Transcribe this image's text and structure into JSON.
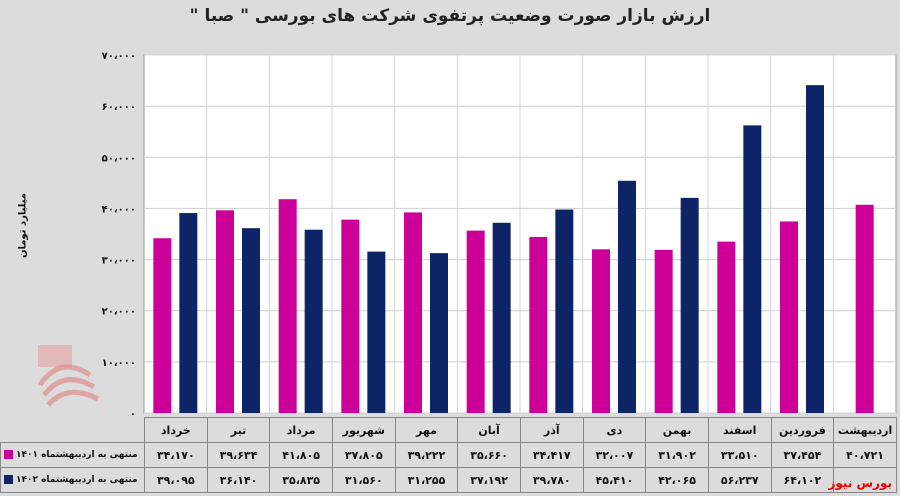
{
  "chart_data": {
    "type": "bar",
    "title": "ارزش بازار صورت وضعیت پرتفوی شرکت های بورسی \" صبا \"",
    "ylabel": "میلیارد تومان",
    "ylim": [
      0,
      70000
    ],
    "yticks": [
      "۰",
      "۱۰،۰۰۰",
      "۲۰،۰۰۰",
      "۳۰،۰۰۰",
      "۴۰،۰۰۰",
      "۵۰،۰۰۰",
      "۶۰،۰۰۰",
      "۷۰،۰۰۰"
    ],
    "grid": true,
    "legend_placement": "table-left",
    "categories": [
      "خرداد",
      "تیر",
      "مرداد",
      "شهریور",
      "مهر",
      "آبان",
      "آذر",
      "دی",
      "بهمن",
      "اسفند",
      "فروردین",
      "اردیبهشت"
    ],
    "series": [
      {
        "name": "منتهی به اردیبهشتماه ۱۴۰۱",
        "color": "#cc0099",
        "values": [
          34170,
          39634,
          41805,
          37805,
          39222,
          35660,
          34417,
          32007,
          31902,
          33510,
          37454,
          40721
        ],
        "labels": [
          "۳۴،۱۷۰",
          "۳۹،۶۳۴",
          "۴۱،۸۰۵",
          "۳۷،۸۰۵",
          "۳۹،۲۲۲",
          "۳۵،۶۶۰",
          "۳۴،۴۱۷",
          "۳۲،۰۰۷",
          "۳۱،۹۰۲",
          "۳۳،۵۱۰",
          "۳۷،۴۵۴",
          "۴۰،۷۲۱"
        ]
      },
      {
        "name": "منتهی به اردیبهشتماه ۱۴۰۲",
        "color": "#0d2466",
        "values": [
          39095,
          36140,
          35835,
          31560,
          31255,
          37192,
          39780,
          45410,
          42065,
          56237,
          64102,
          null
        ],
        "labels": [
          "۳۹،۰۹۵",
          "۳۶،۱۴۰",
          "۳۵،۸۳۵",
          "۳۱،۵۶۰",
          "۳۱،۲۵۵",
          "۳۷،۱۹۲",
          "۳۹،۷۸۰",
          "۴۵،۴۱۰",
          "۴۲،۰۶۵",
          "۵۶،۲۳۷",
          "۶۴،۱۰۲",
          ""
        ]
      }
    ]
  },
  "source": "بورس نیوز",
  "watermark_text": "بورس نیوز"
}
